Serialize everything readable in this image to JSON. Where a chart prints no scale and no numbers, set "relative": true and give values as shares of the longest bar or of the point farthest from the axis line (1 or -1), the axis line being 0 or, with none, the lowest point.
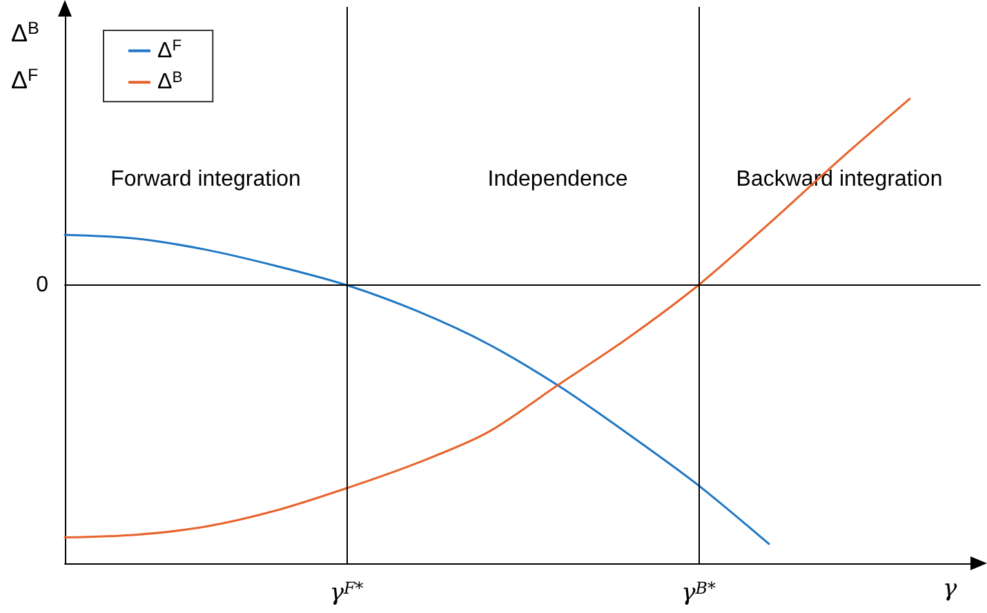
{
  "chart_data": {
    "type": "line",
    "relative": true,
    "xlabel": "γ",
    "ylabel": "Δ$^{B}$\nΔ$^{F}$",
    "categories": [
      null,
      null,
      null,
      null,
      "γ$^{F*}$",
      null,
      null,
      null,
      null,
      "γ$^{B*}$",
      null,
      null,
      null,
      null
    ],
    "legend": "top left",
    "grid": false,
    "marker": "none",
    "line_style": "solid",
    "ref_lines": [
      {
        "axis": "x",
        "value": "γ$^{F*}$",
        "label": null,
        "color": "#000000"
      },
      {
        "axis": "x",
        "value": "γ$^{B*}$",
        "label": null,
        "color": "#000000"
      },
      {
        "axis": "y",
        "value": 0,
        "label": "0",
        "color": "#000000"
      }
    ],
    "annotations": [
      "Forward integration",
      "Independence",
      "Backward integration"
    ],
    "series": [
      {
        "name": "Δ$^{F}$",
        "color": "#1f77c4",
        "values": [
          0.194,
          0.18,
          0.137,
          0.074,
          0,
          -0.1,
          -0.226,
          -0.387,
          -0.575,
          -0.774,
          -1,
          null,
          null,
          null
        ]
      },
      {
        "name": "Δ$^{B}$",
        "color": "#e8632b",
        "values": [
          -0.975,
          -0.965,
          -0.933,
          -0.871,
          -0.785,
          -0.688,
          -0.57,
          -0.387,
          -0.204,
          0,
          0.237,
          0.484,
          0.72,
          null
        ]
      }
    ]
  }
}
